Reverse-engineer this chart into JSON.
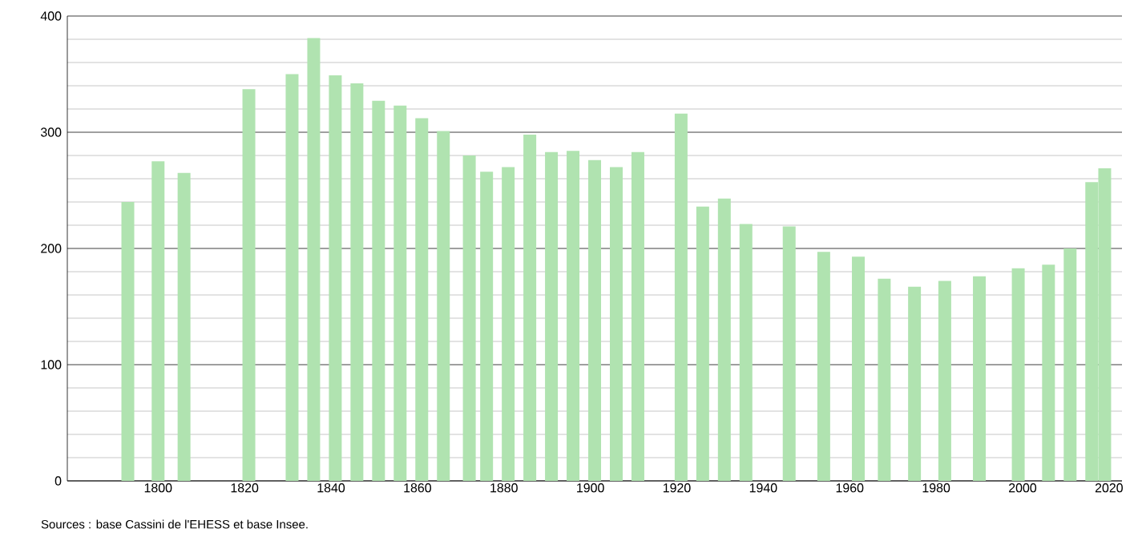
{
  "chart_data": {
    "type": "bar",
    "x": [
      1793,
      1800,
      1806,
      1821,
      1831,
      1836,
      1841,
      1846,
      1851,
      1856,
      1861,
      1866,
      1872,
      1876,
      1881,
      1886,
      1891,
      1896,
      1901,
      1906,
      1911,
      1921,
      1926,
      1931,
      1936,
      1946,
      1954,
      1962,
      1968,
      1975,
      1982,
      1990,
      1999,
      2006,
      2011,
      2016,
      2019
    ],
    "values": [
      240,
      275,
      265,
      337,
      350,
      381,
      349,
      342,
      327,
      323,
      312,
      301,
      280,
      266,
      270,
      298,
      283,
      284,
      276,
      270,
      283,
      316,
      236,
      243,
      221,
      219,
      197,
      193,
      174,
      167,
      172,
      176,
      183,
      186,
      200,
      257,
      269
    ],
    "color": "#b0e3b0",
    "xlim": [
      1779,
      2023
    ],
    "ylim": [
      0,
      400
    ],
    "xticks": [
      1800,
      1820,
      1840,
      1860,
      1880,
      1900,
      1920,
      1940,
      1960,
      1980,
      2000,
      2020
    ],
    "yticks": [
      0,
      100,
      200,
      300,
      400
    ],
    "grid": "y",
    "annotations": [
      "Sources : base Cassini de l'EHESS et base Insee."
    ]
  }
}
